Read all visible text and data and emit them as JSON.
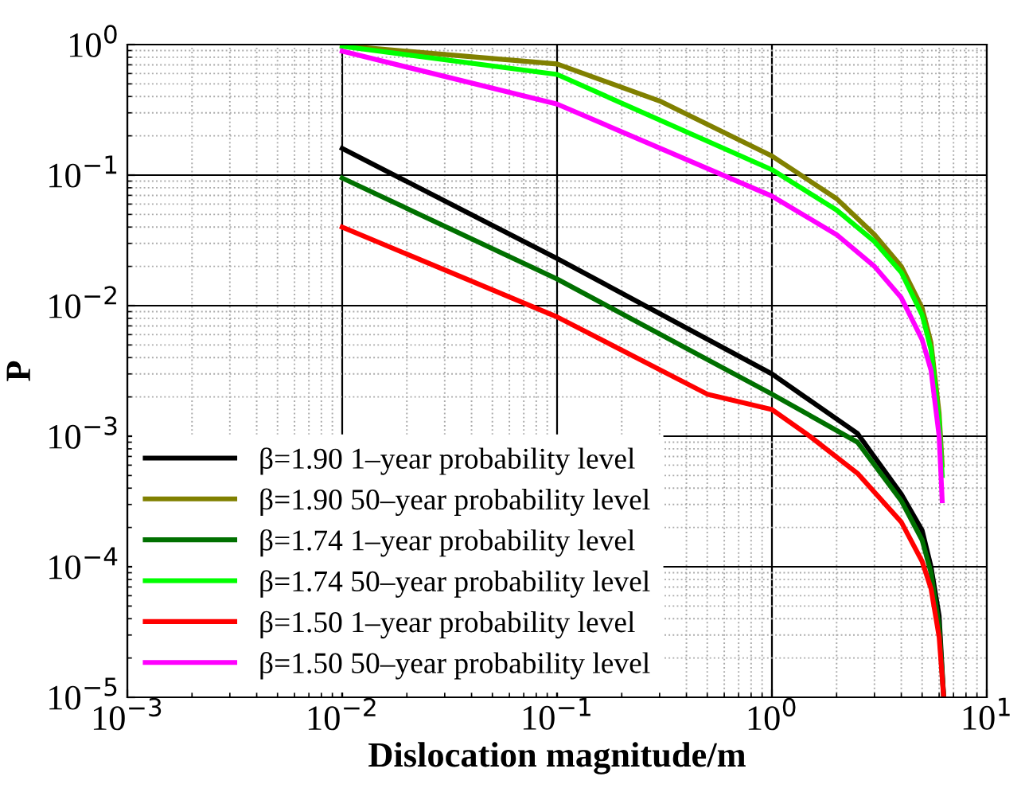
{
  "chart_data": {
    "type": "line",
    "xlabel": "Dislocation magnitude/m",
    "ylabel": "P",
    "log": "xy",
    "grid": true,
    "legend": "bottom left",
    "xlim": [
      0.001,
      10
    ],
    "ylim": [
      1e-05,
      1
    ],
    "xticks": [
      {
        "value": 0.001,
        "label": "10$^{−3}$"
      },
      {
        "value": 0.01,
        "label": "10$^{−2}$"
      },
      {
        "value": 0.1,
        "label": "10$^{−1}$"
      },
      {
        "value": 1,
        "label": "10$^{0}$"
      },
      {
        "value": 10,
        "label": "10$^{1}$"
      }
    ],
    "yticks": [
      {
        "value": 1e-05,
        "label": "10$^{−5}$"
      },
      {
        "value": 0.0001,
        "label": "10$^{−4}$"
      },
      {
        "value": 0.001,
        "label": "10$^{−3}$"
      },
      {
        "value": 0.01,
        "label": "10$^{−2}$"
      },
      {
        "value": 0.1,
        "label": "10$^{−1}$"
      },
      {
        "value": 1,
        "label": "10$^{0}$"
      }
    ],
    "series": [
      {
        "name": "β=1.90 1–year probability level",
        "color": "#000000",
        "x": [
          0.01,
          0.1,
          1,
          2.5,
          4,
          5,
          5.5,
          6,
          6.3
        ],
        "values": [
          0.16,
          0.023,
          0.003,
          0.00105,
          0.00036,
          0.00019,
          0.0001,
          4.2e-05,
          1e-05
        ]
      },
      {
        "name": "β=1.90 50–year probability level",
        "color": "#808000",
        "x": [
          0.01,
          0.1,
          0.3,
          1,
          2,
          3,
          4,
          5,
          5.5,
          6,
          6.2
        ],
        "values": [
          0.98,
          0.71,
          0.37,
          0.14,
          0.066,
          0.035,
          0.02,
          0.0096,
          0.0052,
          0.0015,
          0.0006
        ]
      },
      {
        "name": "β=1.74 1–year probability level",
        "color": "#007000",
        "x": [
          0.01,
          0.1,
          1,
          2.5,
          4,
          5,
          5.5,
          6,
          6.3
        ],
        "values": [
          0.095,
          0.016,
          0.0021,
          0.0009,
          0.00032,
          0.00016,
          9e-05,
          3.5e-05,
          1e-05
        ]
      },
      {
        "name": "β=1.74 50–year probability level",
        "color": "#00ff00",
        "x": [
          0.01,
          0.1,
          1,
          2,
          3,
          4,
          5,
          5.5,
          6,
          6.2
        ],
        "values": [
          0.97,
          0.59,
          0.11,
          0.054,
          0.031,
          0.018,
          0.0085,
          0.0046,
          0.0013,
          0.0005
        ]
      },
      {
        "name": "β=1.50 1–year probability level",
        "color": "#ff0000",
        "x": [
          0.01,
          0.1,
          0.5,
          1,
          1.5,
          2.5,
          4,
          5,
          5.5,
          6,
          6.3
        ],
        "values": [
          0.04,
          0.0082,
          0.0021,
          0.0016,
          0.001,
          0.00052,
          0.00022,
          0.00011,
          6.8e-05,
          2.9e-05,
          1e-05
        ]
      },
      {
        "name": "β=1.50 50–year probability level",
        "color": "#ff00ff",
        "x": [
          0.01,
          0.1,
          1,
          2,
          3,
          4,
          5,
          5.5,
          6,
          6.2
        ],
        "values": [
          0.89,
          0.35,
          0.069,
          0.035,
          0.02,
          0.0115,
          0.0055,
          0.0032,
          0.001,
          0.00032
        ]
      }
    ]
  }
}
